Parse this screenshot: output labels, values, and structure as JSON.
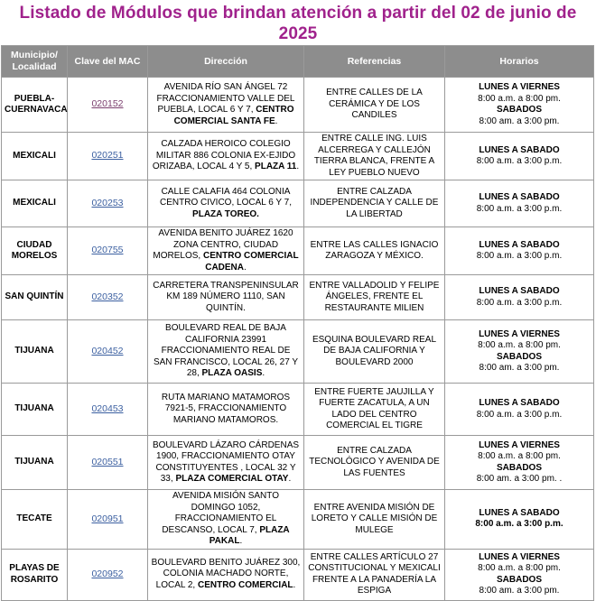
{
  "title": "Listado de Módulos que brindan atención a partir del 02 de junio de 2025",
  "headers": {
    "municipio": "Municipio/ Localidad",
    "clave": "Clave del MAC",
    "direccion": "Dirección",
    "referencias": "Referencias",
    "horarios": "Horarios"
  },
  "colors": {
    "title": "#a0228c",
    "header_bg": "#8d8d8d",
    "link": "#3b5fa0"
  },
  "rows": [
    {
      "municipio": "PUEBLA-CUERNAVACA",
      "clave": "020152",
      "direccion": "AVENIDA RÍO SAN ÁNGEL 72 FRACCIONAMIENTO VALLE DEL PUEBLA, LOCAL 6 Y 7, ",
      "direccion_bold": "CENTRO COMERCIAL SANTA FE",
      "direccion_end": ".",
      "referencias": "ENTRE CALLES DE LA CERÁMICA Y DE LOS CANDILES",
      "horario_l1": "LUNES A VIERNES",
      "horario_v1": "8:00 a.m. a 8:00 pm.",
      "horario_l2": "SABADOS",
      "horario_v2": "8:00 am. a 3:00 pm."
    },
    {
      "municipio": "MEXICALI",
      "clave": "020251",
      "direccion": "CALZADA HEROICO COLEGIO MILITAR 886 COLONIA EX-EJIDO ORIZABA, LOCAL 4 Y 5, ",
      "direccion_bold": "PLAZA 11",
      "direccion_end": ".",
      "referencias": "ENTRE CALLE ING. LUIS ALCERREGA Y CALLEJÓN TIERRA BLANCA, FRENTE A LEY PUEBLO NUEVO",
      "horario_l1": "LUNES A SABADO",
      "horario_v1": "8:00 a.m. a 3:00 p.m."
    },
    {
      "municipio": "MEXICALI",
      "clave": "020253",
      "direccion": "CALLE CALAFIA 464 COLONIA CENTRO CIVICO, LOCAL 6 Y 7, ",
      "direccion_bold": "PLAZA TOREO.",
      "direccion_end": "",
      "referencias": "ENTRE CALZADA INDEPENDENCIA Y CALLE DE LA LIBERTAD",
      "horario_l1": "LUNES A SABADO",
      "horario_v1": "8:00 a.m. a 3:00 p.m."
    },
    {
      "municipio": "CIUDAD MORELOS",
      "clave": "020755",
      "direccion": "AVENIDA BENITO JUÁREZ 1620 ZONA CENTRO, CIUDAD MORELOS, ",
      "direccion_bold": "CENTRO COMERCIAL CADENA",
      "direccion_end": ".",
      "referencias": "ENTRE LAS CALLES IGNACIO ZARAGOZA Y MÉXICO.",
      "horario_l1": "LUNES A SABADO",
      "horario_v1": "8:00 a.m. a 3:00 p.m."
    },
    {
      "municipio": "SAN QUINTÍN",
      "clave": "020352",
      "direccion": "CARRETERA TRANSPENINSULAR KM 189 NÚMERO 1110, SAN QUINTÍN.",
      "direccion_bold": "",
      "direccion_end": "",
      "referencias": "ENTRE VALLADOLID Y FELIPE ÁNGELES, FRENTE EL RESTAURANTE MILIEN",
      "horario_l1": "LUNES A SABADO",
      "horario_v1": "8:00 a.m. a 3:00 p.m."
    },
    {
      "municipio": "TIJUANA",
      "clave": "020452",
      "direccion": "BOULEVARD REAL DE BAJA CALIFORNIA 23991 FRACCIONAMIENTO REAL DE SAN FRANCISCO, LOCAL 26, 27 Y 28, ",
      "direccion_bold": "PLAZA OASIS",
      "direccion_end": ".",
      "referencias": "ESQUINA BOULEVARD REAL DE BAJA CALIFORNIA Y BOULEVARD 2000",
      "horario_l1": "LUNES A VIERNES",
      "horario_v1": "8:00 a.m. a 8:00 pm.",
      "horario_l2": "SABADOS",
      "horario_v2": "8:00 am. a 3:00 pm."
    },
    {
      "municipio": "TIJUANA",
      "clave": "020453",
      "direccion": "RUTA MARIANO MATAMOROS 7921-5, FRACCIONAMIENTO MARIANO MATAMOROS.",
      "direccion_bold": "",
      "direccion_end": "",
      "referencias": "ENTRE FUERTE JAUJILLA Y FUERTE ZACATULA, A UN LADO DEL CENTRO COMERCIAL EL TIGRE",
      "horario_l1": "LUNES A SABADO",
      "horario_v1": "8:00 a.m. a 3:00 p.m."
    },
    {
      "municipio": "TIJUANA",
      "clave": "020551",
      "direccion": "BOULEVARD LÁZARO CÁRDENAS 1900, FRACCIONAMIENTO OTAY CONSTITUYENTES , LOCAL 32 Y 33, ",
      "direccion_bold": "PLAZA COMERCIAL OTAY",
      "direccion_end": ".",
      "referencias": "ENTRE CALZADA TECNOLÓGICO Y AVENIDA DE LAS FUENTES",
      "horario_l1": "LUNES A VIERNES",
      "horario_v1": "8:00 a.m. a 8:00 pm.",
      "horario_l2": "SABADOS",
      "horario_v2": "8:00 am. a 3:00 pm. ."
    },
    {
      "municipio": "TECATE",
      "clave": "020951",
      "direccion": "AVENIDA MISIÓN SANTO DOMINGO 1052, FRACCIONAMIENTO EL DESCANSO, LOCAL 7, ",
      "direccion_bold": "PLAZA PAKAL",
      "direccion_end": ".",
      "referencias": "ENTRE AVENIDA MISIÓN DE LORETO Y CALLE MISIÓN DE MULEGE",
      "horario_l1": "LUNES A SABADO",
      "horario_v1": "8:00 a.m. a 3:00 p.m."
    },
    {
      "municipio": "PLAYAS DE ROSARITO",
      "clave": "020952",
      "direccion": "BOULEVARD BENITO JUÁREZ 300, COLONIA MACHADO NORTE, LOCAL 2, ",
      "direccion_bold": "CENTRO COMERCIAL",
      "direccion_end": ".",
      "referencias": "ENTRE CALLES ARTÍCULO 27 CONSTITUCIONAL Y MEXICALI FRENTE A LA PANADERÍA LA ESPIGA",
      "horario_l1": "LUNES A VIERNES",
      "horario_v1": "8:00 a.m. a 8:00 pm.",
      "horario_l2": "SABADOS",
      "horario_v2": "8:00 am. a 3:00 pm."
    }
  ]
}
